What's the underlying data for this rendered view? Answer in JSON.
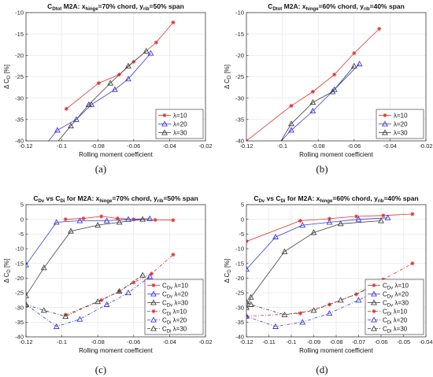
{
  "panel_labels": [
    "(a)",
    "(b)",
    "(c)",
    "(d)"
  ],
  "colors": {
    "lambda10": "#e0302e",
    "lambda20": "#3b3bdf",
    "lambda30": "#404040"
  },
  "chart_data": [
    {
      "type": "line",
      "title": {
        "base": "C",
        "base_sub": "Dtot",
        "rest1": " M2A: x",
        "sub1": "hinge",
        "rest2": "=70% chord, y",
        "sub2": "rib",
        "rest3": "=50% span"
      },
      "xlabel": "Rolling moment coefficient",
      "ylabel": {
        "base": "Δ C",
        "sub": "D",
        "rest": " [%]"
      },
      "xlim": [
        -0.12,
        -0.02
      ],
      "ylim": [
        -40,
        -10
      ],
      "xticks": [
        -0.12,
        -0.1,
        -0.08,
        -0.06,
        -0.04,
        -0.02
      ],
      "xtick_labels": [
        "-0.12",
        "-0.1",
        "-0.08",
        "-0.06",
        "-0.04",
        "-0.02"
      ],
      "yticks": [
        -40,
        -35,
        -30,
        -25,
        -20,
        -15,
        -10
      ],
      "ytick_labels": [
        "-40",
        "-35",
        "-30",
        "-25",
        "-20",
        "-15",
        "-10"
      ],
      "legend_position": "lower-right",
      "series": [
        {
          "name": "λ=10",
          "color_key": "lambda10",
          "marker": "star",
          "dash": "solid",
          "x": [
            -0.0975,
            -0.0795,
            -0.068,
            -0.06,
            -0.0475,
            -0.038
          ],
          "y": [
            -32.5,
            -26.5,
            -24.5,
            -21.5,
            -17,
            -12.3
          ]
        },
        {
          "name": "λ=20",
          "color_key": "lambda20",
          "marker": "triangle",
          "dash": "solid",
          "x": [
            -0.1105,
            -0.1025,
            -0.092,
            -0.0835,
            -0.0705,
            -0.063,
            -0.0505
          ],
          "y": [
            -41.5,
            -37.5,
            -35,
            -31.5,
            -28,
            -25.5,
            -19.5
          ]
        },
        {
          "name": "λ=30",
          "color_key": "lambda30",
          "marker": "triangle",
          "dash": "solid",
          "x": [
            -0.105,
            -0.095,
            -0.085,
            -0.073,
            -0.063,
            -0.053
          ],
          "y": [
            -41.5,
            -36.5,
            -31.5,
            -26.5,
            -22.5,
            -19
          ]
        }
      ]
    },
    {
      "type": "line",
      "title": {
        "base": "C",
        "base_sub": "Dtot",
        "rest1": " M2A: x",
        "sub1": "hinge",
        "rest2": "=60% chord, y",
        "sub2": "rib",
        "rest3": "=40% span"
      },
      "xlabel": "Rolling moment coefficient",
      "ylabel": {
        "base": "Δ C",
        "sub": "D",
        "rest": " [%]"
      },
      "xlim": [
        -0.12,
        -0.02
      ],
      "ylim": [
        -40,
        -10
      ],
      "xticks": [
        -0.12,
        -0.1,
        -0.08,
        -0.06,
        -0.04,
        -0.02
      ],
      "xtick_labels": [
        "-0.12",
        "-0.1",
        "-0.08",
        "-0.06",
        "-0.04",
        "-0.02"
      ],
      "yticks": [
        -40,
        -35,
        -30,
        -25,
        -20,
        -15,
        -10
      ],
      "ytick_labels": [
        "-40",
        "-35",
        "-30",
        "-25",
        "-20",
        "-15",
        "-10"
      ],
      "legend_position": "lower-right",
      "series": [
        {
          "name": "λ=10",
          "color_key": "lambda10",
          "marker": "star",
          "dash": "solid",
          "x": [
            -0.12,
            -0.095,
            -0.083,
            -0.071,
            -0.06,
            -0.046
          ],
          "y": [
            -40,
            -31.8,
            -28.5,
            -24.5,
            -19.5,
            -13.8
          ]
        },
        {
          "name": "λ=20",
          "color_key": "lambda20",
          "marker": "triangle",
          "dash": "solid",
          "x": [
            -0.105,
            -0.095,
            -0.083,
            -0.071,
            -0.057
          ],
          "y": [
            -42,
            -37.5,
            -33,
            -28,
            -22
          ]
        },
        {
          "name": "λ=30",
          "color_key": "lambda30",
          "marker": "triangle",
          "dash": "solid",
          "x": [
            -0.105,
            -0.095,
            -0.083,
            -0.072,
            -0.06
          ],
          "y": [
            -43,
            -36,
            -31,
            -28.5,
            -22.5
          ]
        }
      ]
    },
    {
      "type": "line",
      "title": {
        "base": "C",
        "base_sub": "Dv",
        "mid": " vs C",
        "mid_sub": "Di",
        "rest1": " for M2A: x",
        "sub1": "hinge",
        "rest2": "=70% chord, y",
        "sub2": "rib",
        "rest3": "=50% span"
      },
      "xlabel": "Rolling moment coefficient",
      "ylabel": {
        "base": "Δ C",
        "sub": "D",
        "rest": " [%]"
      },
      "xlim": [
        -0.12,
        -0.02
      ],
      "ylim": [
        -40,
        5
      ],
      "xticks": [
        -0.12,
        -0.1,
        -0.08,
        -0.06,
        -0.04,
        -0.02
      ],
      "xtick_labels": [
        "-0.12",
        "-0.1",
        "-0.08",
        "-0.06",
        "-0.04",
        "-0.02"
      ],
      "yticks": [
        -40,
        -35,
        -30,
        -25,
        -20,
        -15,
        -10,
        -5,
        0,
        5
      ],
      "ytick_labels": [
        "-40",
        "-35",
        "-30",
        "-25",
        "-20",
        "-15",
        "-10",
        "-5",
        "0",
        "5"
      ],
      "legend_position": "lower-right",
      "series": [
        {
          "name": "λ=10",
          "name_base": "C",
          "name_sub": "Dv",
          "color_key": "lambda10",
          "marker": "star",
          "dash": "solid",
          "x": [
            -0.098,
            -0.088,
            -0.078,
            -0.069,
            -0.06,
            -0.048,
            -0.038
          ],
          "y": [
            0,
            0.3,
            1,
            0.3,
            0,
            -0.2,
            -0.3
          ]
        },
        {
          "name": "λ=20",
          "name_base": "C",
          "name_sub": "Dv",
          "color_key": "lambda20",
          "marker": "triangle",
          "dash": "solid",
          "x": [
            -0.12,
            -0.103,
            -0.09,
            -0.075,
            -0.063,
            -0.051
          ],
          "y": [
            -15.5,
            -1,
            -0.5,
            -0.5,
            0,
            0.2
          ]
        },
        {
          "name": "λ=30",
          "name_base": "C",
          "name_sub": "Dv",
          "color_key": "lambda30",
          "marker": "triangle",
          "dash": "solid",
          "x": [
            -0.12,
            -0.11,
            -0.095,
            -0.08,
            -0.068,
            -0.055
          ],
          "y": [
            -26,
            -16.5,
            -4,
            -2,
            -1,
            0
          ]
        },
        {
          "name": "λ=10",
          "name_base": "C",
          "name_sub": "Di",
          "color_key": "lambda10",
          "marker": "star",
          "dash": "dashdot",
          "x": [
            -0.098,
            -0.078,
            -0.068,
            -0.06,
            -0.05,
            -0.038
          ],
          "y": [
            -32.5,
            -27.5,
            -24.5,
            -21.5,
            -18.5,
            -12
          ]
        },
        {
          "name": "λ=20",
          "name_base": "C",
          "name_sub": "Di",
          "color_key": "lambda20",
          "marker": "triangle",
          "dash": "dashdot",
          "x": [
            -0.12,
            -0.103,
            -0.09,
            -0.075,
            -0.063,
            -0.051
          ],
          "y": [
            -29,
            -36.5,
            -34,
            -29,
            -25,
            -19.5
          ]
        },
        {
          "name": "λ=30",
          "name_base": "C",
          "name_sub": "Di",
          "color_key": "lambda30",
          "marker": "triangle",
          "dash": "dashdot",
          "x": [
            -0.12,
            -0.11,
            -0.098,
            -0.08,
            -0.068,
            -0.055
          ],
          "y": [
            -29,
            -31,
            -33,
            -28,
            -24.5,
            -19
          ]
        }
      ]
    },
    {
      "type": "line",
      "title": {
        "base": "C",
        "base_sub": "Dv",
        "mid": " vs C",
        "mid_sub": "Di",
        "rest1": " for M2A: x",
        "sub1": "hinge",
        "rest2": "=60% chord, y",
        "sub2": "rib",
        "rest3": "=40% span"
      },
      "xlabel": "Rolling moment coefficient",
      "ylabel": {
        "base": "Δ C",
        "sub": "D",
        "rest": " [%]"
      },
      "xlim": [
        -0.12,
        -0.04
      ],
      "ylim": [
        -40,
        5
      ],
      "xticks": [
        -0.12,
        -0.11,
        -0.1,
        -0.09,
        -0.08,
        -0.07,
        -0.06,
        -0.05,
        -0.04
      ],
      "xtick_labels": [
        "-0.12",
        "-0.11",
        "-0.1",
        "-0.09",
        "-0.08",
        "-0.07",
        "-0.06",
        "-0.05",
        "-0.04"
      ],
      "yticks": [
        -40,
        -35,
        -30,
        -25,
        -20,
        -15,
        -10,
        -5,
        0,
        5
      ],
      "ytick_labels": [
        "-40",
        "-35",
        "-30",
        "-25",
        "-20",
        "-15",
        "-10",
        "-5",
        "0",
        "5"
      ],
      "legend_position": "lower-right",
      "series": [
        {
          "name": "λ=10",
          "name_base": "C",
          "name_sub": "Dv",
          "color_key": "lambda10",
          "marker": "star",
          "dash": "solid",
          "x": [
            -0.12,
            -0.096,
            -0.083,
            -0.071,
            -0.059,
            -0.046
          ],
          "y": [
            -7.5,
            -0.5,
            0.2,
            1,
            1.3,
            1.8
          ]
        },
        {
          "name": "λ=20",
          "name_base": "C",
          "name_sub": "Dv",
          "color_key": "lambda20",
          "marker": "triangle",
          "dash": "solid",
          "x": [
            -0.12,
            -0.107,
            -0.095,
            -0.083,
            -0.07,
            -0.057
          ],
          "y": [
            -17,
            -6,
            -2,
            -1,
            0,
            0.5
          ]
        },
        {
          "name": "λ=30",
          "name_base": "C",
          "name_sub": "Dv",
          "color_key": "lambda30",
          "marker": "triangle",
          "dash": "solid",
          "x": [
            -0.12,
            -0.118,
            -0.103,
            -0.09,
            -0.078,
            -0.06
          ],
          "y": [
            -30,
            -26.5,
            -11,
            -4.5,
            -1.5,
            -0.5
          ]
        },
        {
          "name": "λ=10",
          "name_base": "C",
          "name_sub": "Di",
          "color_key": "lambda10",
          "marker": "star",
          "dash": "dashdot",
          "x": [
            -0.12,
            -0.096,
            -0.083,
            -0.071,
            -0.059,
            -0.046
          ],
          "y": [
            -33,
            -32,
            -29,
            -25.5,
            -20.5,
            -15
          ]
        },
        {
          "name": "λ=20",
          "name_base": "C",
          "name_sub": "Di",
          "color_key": "lambda20",
          "marker": "triangle",
          "dash": "dashdot",
          "x": [
            -0.12,
            -0.107,
            -0.095,
            -0.083,
            -0.07,
            -0.057
          ],
          "y": [
            -33,
            -36.5,
            -35,
            -32,
            -27.5,
            -22.5
          ]
        },
        {
          "name": "λ=30",
          "name_base": "C",
          "name_sub": "Di",
          "color_key": "lambda30",
          "marker": "triangle",
          "dash": "dashdot",
          "x": [
            -0.12,
            -0.118,
            -0.103,
            -0.09,
            -0.078,
            -0.06
          ],
          "y": [
            -28,
            -29,
            -32.5,
            -31,
            -27.5,
            -22
          ]
        }
      ]
    }
  ]
}
